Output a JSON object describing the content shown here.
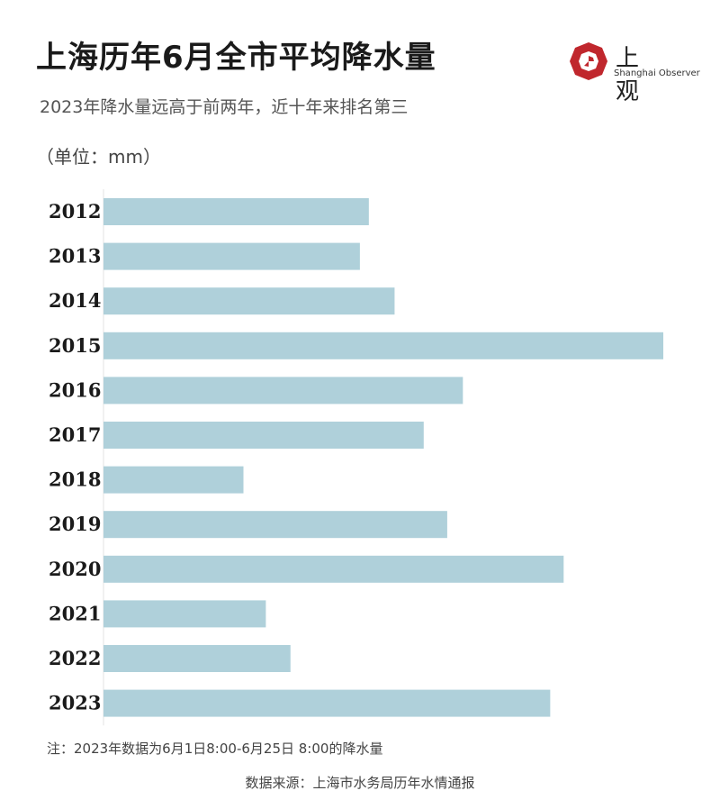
{
  "title": "上海历年6月全市平均降水量",
  "subtitle": "2023年降水量远高于前两年，近十年来排名第三",
  "unit_label": "（单位：mm）",
  "logo": {
    "name_cn": "上 观",
    "name_en": "Shanghai Observer",
    "color": "#c0272d"
  },
  "note": "注：2023年数据为6月1日8:00-6月25日 8:00的降水量",
  "source": "数据来源：上海市水务局历年水情通报",
  "bar_color": "#afd0da",
  "chart_data": {
    "type": "bar",
    "orientation": "horizontal",
    "title": "上海历年6月全市平均降水量",
    "subtitle": "2023年降水量远高于前两年，近十年来排名第三",
    "categories": [
      "2012",
      "2013",
      "2014",
      "2015",
      "2016",
      "2017",
      "2018",
      "2019",
      "2020",
      "2021",
      "2022",
      "2023"
    ],
    "values": [
      237,
      229,
      260,
      500,
      321,
      286,
      125,
      307,
      411,
      145,
      167,
      399
    ],
    "xlim": [
      0,
      500
    ],
    "value_unit": "mm",
    "grid": false,
    "legend": "none"
  }
}
